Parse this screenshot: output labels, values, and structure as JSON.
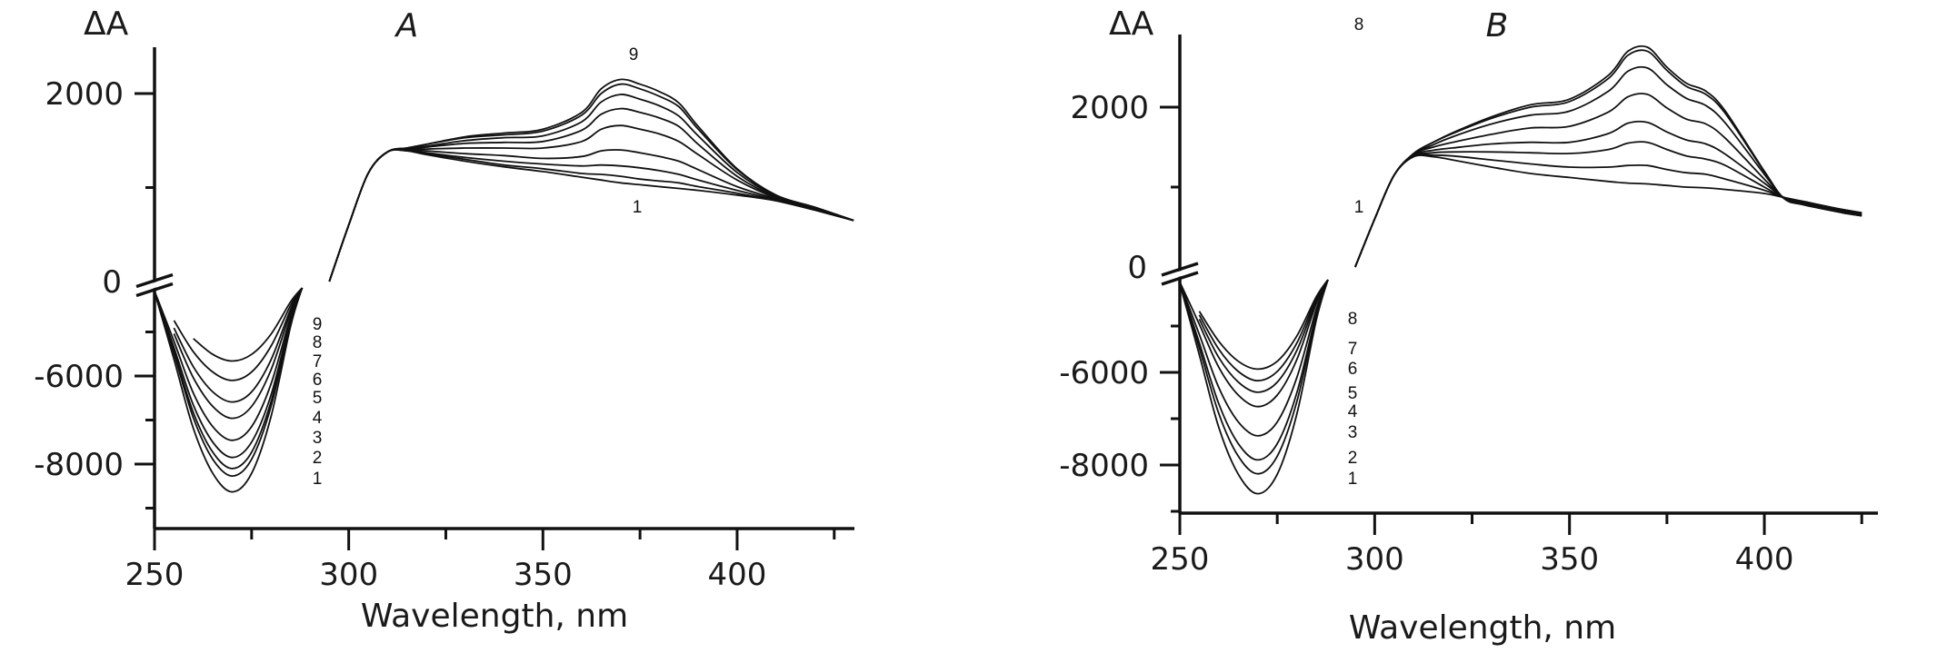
{
  "chart_data": [
    {
      "type": "line",
      "title": "A",
      "xlabel": "Wavelength, nm",
      "ylabel": "ΔA",
      "xlim": [
        250,
        430
      ],
      "ylim_upper": [
        0,
        2500
      ],
      "ylim_lower": [
        -9500,
        -4000
      ],
      "broken_y_axis": true,
      "xticks": [
        "250",
        "300",
        "350",
        "400"
      ],
      "yticks": [
        "2000",
        "0",
        "-6000",
        "-8000"
      ],
      "grid": false,
      "x_positive": [
        295,
        300,
        305,
        310,
        315,
        320,
        330,
        340,
        350,
        360,
        365,
        370,
        375,
        380,
        385,
        390,
        400,
        410,
        420,
        430
      ],
      "x_negative": [
        250,
        255,
        260,
        265,
        270,
        275,
        280,
        285,
        288
      ],
      "top_label": "9",
      "bottom_label": "1",
      "series": [
        {
          "name": "1",
          "positive": [
            0,
            600,
            1150,
            1380,
            1390,
            1350,
            1280,
            1220,
            1170,
            1110,
            1080,
            1050,
            1030,
            1010,
            990,
            970,
            920,
            860,
            760,
            650
          ],
          "negative": [
            -4090,
            -5620,
            -7190,
            -8210,
            -8630,
            -8210,
            -6920,
            -4880,
            -4000
          ]
        },
        {
          "name": "2",
          "positive": [
            0,
            600,
            1150,
            1380,
            1390,
            1360,
            1300,
            1240,
            1200,
            1150,
            1140,
            1120,
            1090,
            1070,
            1050,
            1010,
            940,
            860,
            760,
            650
          ],
          "negative": [
            -4090,
            -5490,
            -6950,
            -7890,
            -8270,
            -7890,
            -6690,
            -4810,
            -4000
          ]
        },
        {
          "name": "3",
          "positive": [
            0,
            600,
            1150,
            1380,
            1400,
            1370,
            1320,
            1280,
            1250,
            1230,
            1240,
            1230,
            1210,
            1180,
            1140,
            1080,
            970,
            870,
            770,
            650
          ],
          "negative": [
            -4080,
            -5440,
            -6830,
            -7730,
            -8100,
            -7730,
            -6580,
            -4780,
            -4000
          ]
        },
        {
          "name": "4",
          "positive": [
            0,
            600,
            1150,
            1380,
            1400,
            1390,
            1360,
            1340,
            1310,
            1330,
            1390,
            1400,
            1370,
            1330,
            1280,
            1190,
            1010,
            880,
            770,
            650
          ],
          "negative": [
            -4080,
            -5350,
            -6660,
            -7500,
            -7850,
            -7500,
            -6430,
            -4730,
            -4000
          ]
        },
        {
          "name": "5",
          "positive": [
            0,
            600,
            1150,
            1380,
            1410,
            1410,
            1420,
            1420,
            1420,
            1490,
            1620,
            1660,
            1620,
            1570,
            1490,
            1350,
            1080,
            890,
            780,
            650
          ],
          "negative": [
            -4070,
            -5210,
            -6390,
            -7150,
            -7460,
            -7150,
            -6180,
            -4660,
            -4000
          ]
        },
        {
          "name": "6",
          "positive": [
            0,
            600,
            1150,
            1380,
            1410,
            1430,
            1470,
            1480,
            1490,
            1610,
            1780,
            1840,
            1800,
            1740,
            1650,
            1460,
            1120,
            900,
            780,
            650
          ],
          "negative": [
            null,
            -5040,
            -6040,
            -6690,
            -6960,
            -6690,
            -5860,
            -4560,
            -4000
          ]
        },
        {
          "name": "7",
          "positive": [
            0,
            600,
            1150,
            1380,
            1420,
            1440,
            1500,
            1530,
            1550,
            1700,
            1910,
            1990,
            1940,
            1870,
            1760,
            1550,
            1160,
            910,
            790,
            650
          ],
          "negative": [
            null,
            -4910,
            -5790,
            -6360,
            -6590,
            -6360,
            -5630,
            -4490,
            -4000
          ]
        },
        {
          "name": "8",
          "positive": [
            0,
            600,
            1150,
            1380,
            1420,
            1460,
            1530,
            1560,
            1600,
            1770,
            2000,
            2100,
            2050,
            1970,
            1860,
            1620,
            1190,
            920,
            790,
            650
          ],
          "negative": [
            null,
            -4740,
            -5450,
            -5910,
            -6100,
            -5910,
            -5320,
            -4400,
            -4000
          ]
        },
        {
          "name": "9",
          "positive": [
            0,
            600,
            1150,
            1380,
            1420,
            1460,
            1540,
            1580,
            1620,
            1800,
            2050,
            2150,
            2100,
            2020,
            1900,
            1650,
            1200,
            920,
            790,
            650
          ],
          "negative": [
            null,
            null,
            -5150,
            -5510,
            -5660,
            -5510,
            -5050,
            -4320,
            -4000
          ]
        }
      ]
    },
    {
      "type": "line",
      "title": "B",
      "xlabel": "Wavelength, nm",
      "ylabel": "ΔA",
      "xlim": [
        250,
        425
      ],
      "ylim_upper": [
        0,
        2900
      ],
      "ylim_lower": [
        -9000,
        -4000
      ],
      "broken_y_axis": true,
      "xticks": [
        "250",
        "300",
        "350",
        "400"
      ],
      "yticks": [
        "2000",
        "0",
        "-6000",
        "-8000"
      ],
      "grid": false,
      "x_positive": [
        295,
        300,
        305,
        310,
        315,
        320,
        330,
        340,
        350,
        360,
        365,
        370,
        375,
        380,
        385,
        390,
        400,
        405,
        410,
        420,
        425
      ],
      "x_negative": [
        250,
        255,
        260,
        265,
        270,
        275,
        280,
        285,
        288
      ],
      "top_label": "8",
      "bottom_label": "1",
      "series": [
        {
          "name": "1",
          "positive": [
            0,
            600,
            1150,
            1380,
            1380,
            1340,
            1250,
            1170,
            1120,
            1070,
            1050,
            1040,
            1020,
            1000,
            990,
            970,
            920,
            870,
            820,
            720,
            680
          ],
          "negative": [
            -4090,
            -5620,
            -7190,
            -8200,
            -8620,
            -8200,
            -6910,
            -4880,
            -4000
          ]
        },
        {
          "name": "2",
          "positive": [
            0,
            600,
            1150,
            1390,
            1400,
            1390,
            1340,
            1290,
            1250,
            1250,
            1270,
            1270,
            1220,
            1180,
            1160,
            1100,
            960,
            870,
            820,
            720,
            680
          ],
          "negative": [
            -4080,
            -5470,
            -6890,
            -7810,
            -8190,
            -7810,
            -6640,
            -4800,
            -4000
          ]
        },
        {
          "name": "3",
          "positive": [
            0,
            600,
            1150,
            1390,
            1430,
            1440,
            1440,
            1430,
            1420,
            1470,
            1550,
            1560,
            1470,
            1390,
            1350,
            1270,
            1000,
            870,
            810,
            710,
            670
          ],
          "negative": [
            -4080,
            -5360,
            -6680,
            -7540,
            -7890,
            -7540,
            -6450,
            -4740,
            -4000
          ]
        },
        {
          "name": "4",
          "positive": [
            0,
            600,
            1150,
            1400,
            1460,
            1490,
            1540,
            1560,
            1560,
            1670,
            1800,
            1810,
            1690,
            1590,
            1540,
            1410,
            1050,
            870,
            800,
            700,
            660
          ],
          "negative": [
            -4070,
            -5180,
            -6330,
            -7070,
            -7370,
            -7070,
            -6120,
            -4640,
            -4000
          ]
        },
        {
          "name": "5",
          "positive": [
            0,
            600,
            1150,
            1410,
            1500,
            1560,
            1660,
            1740,
            1760,
            1940,
            2130,
            2160,
            1990,
            1850,
            1790,
            1610,
            1100,
            860,
            790,
            690,
            650
          ],
          "negative": [
            -4050,
            -4960,
            -5890,
            -6490,
            -6740,
            -6490,
            -5730,
            -4520,
            -4000
          ]
        },
        {
          "name": "6",
          "positive": [
            0,
            600,
            1150,
            1410,
            1530,
            1630,
            1790,
            1900,
            1950,
            2200,
            2450,
            2490,
            2280,
            2110,
            2020,
            1800,
            1160,
            860,
            790,
            690,
            650
          ],
          "negative": [
            null,
            -4850,
            -5680,
            -6210,
            -6430,
            -6210,
            -5530,
            -4460,
            -4000
          ]
        },
        {
          "name": "7",
          "positive": [
            0,
            600,
            1150,
            1420,
            1560,
            1670,
            1860,
            2000,
            2070,
            2360,
            2650,
            2700,
            2460,
            2260,
            2160,
            1920,
            1190,
            860,
            780,
            680,
            640
          ],
          "negative": [
            null,
            -4760,
            -5500,
            -5980,
            -6180,
            -5980,
            -5370,
            -4410,
            -4000
          ]
        },
        {
          "name": "8",
          "positive": [
            0,
            600,
            1150,
            1420,
            1560,
            1680,
            1880,
            2030,
            2100,
            2400,
            2700,
            2750,
            2500,
            2300,
            2200,
            1950,
            1200,
            860,
            780,
            680,
            640
          ],
          "negative": [
            null,
            -4680,
            -5330,
            -5760,
            -5930,
            -5760,
            -5220,
            -4370,
            -4000
          ]
        }
      ]
    }
  ]
}
